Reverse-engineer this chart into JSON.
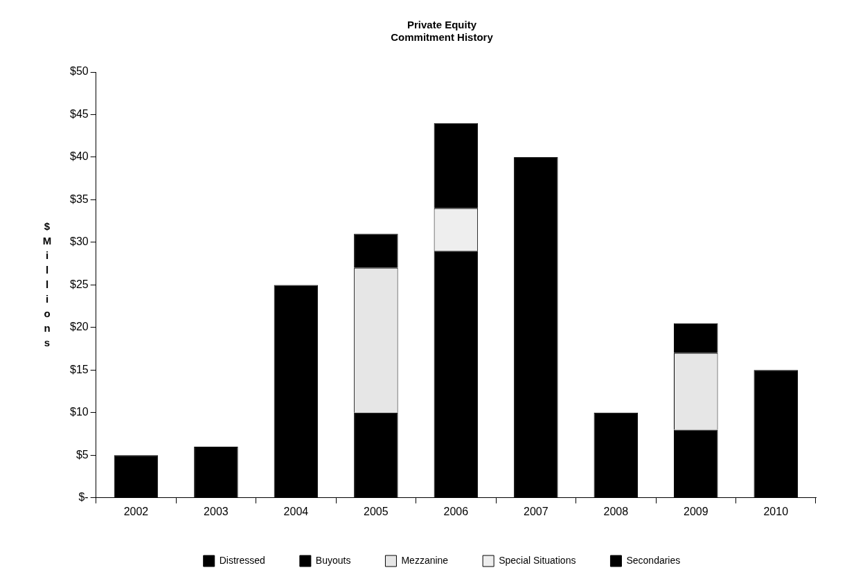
{
  "chart_data": {
    "type": "bar",
    "title": "Private Equity\nCommitment History",
    "ylabel": "$ Millions",
    "categories": [
      "2002",
      "2003",
      "2004",
      "2005",
      "2006",
      "2007",
      "2008",
      "2009",
      "2010"
    ],
    "stacked": true,
    "series": [
      {
        "name": "Distressed",
        "color": "#000000",
        "values": [
          0,
          0,
          0,
          0,
          0,
          0,
          0,
          0,
          0
        ]
      },
      {
        "name": "Buyouts",
        "color": "#000000",
        "values": [
          5,
          6,
          25,
          10,
          29,
          40,
          10,
          8,
          15
        ]
      },
      {
        "name": "Mezzanine",
        "color": "#e6e6e6",
        "values": [
          0,
          0,
          0,
          17,
          0,
          0,
          0,
          9,
          0
        ]
      },
      {
        "name": "Special Situations",
        "color": "#eeeeee",
        "values": [
          0,
          0,
          0,
          0,
          5,
          0,
          0,
          0,
          0
        ]
      },
      {
        "name": "Secondaries",
        "color": "#000000",
        "values": [
          0,
          0,
          0,
          4,
          10,
          0,
          0,
          3.5,
          0
        ]
      }
    ],
    "ylim": [
      0,
      50
    ],
    "yticks": [
      {
        "value": 0,
        "label": "$-"
      },
      {
        "value": 5,
        "label": "$5"
      },
      {
        "value": 10,
        "label": "$10"
      },
      {
        "value": 15,
        "label": "$15"
      },
      {
        "value": 20,
        "label": "$20"
      },
      {
        "value": 25,
        "label": "$25"
      },
      {
        "value": 30,
        "label": "$30"
      },
      {
        "value": 35,
        "label": "$35"
      },
      {
        "value": 40,
        "label": "$40"
      },
      {
        "value": 45,
        "label": "$45"
      },
      {
        "value": 50,
        "label": "$50"
      }
    ],
    "grid": false,
    "legend": "bottom"
  }
}
